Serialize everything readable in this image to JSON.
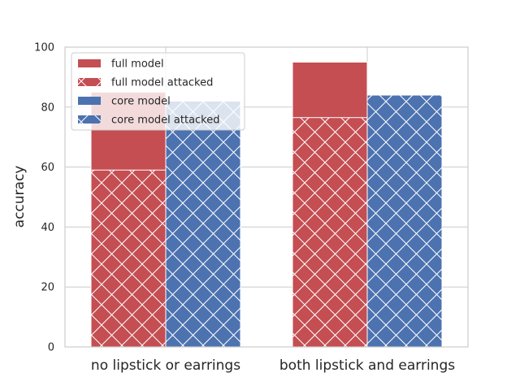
{
  "chart_data": {
    "type": "bar",
    "ylabel": "accuracy",
    "xlabel": "",
    "title": "",
    "ylim": [
      0,
      100
    ],
    "yticks": [
      0,
      20,
      40,
      60,
      80,
      100
    ],
    "grid": true,
    "legend_position": "top-left",
    "categories": [
      "no lipstick or earrings",
      "both lipstick and earrings"
    ],
    "series": [
      {
        "name": "full model",
        "values": [
          85,
          95
        ],
        "color": "#c44e52",
        "hatch": false
      },
      {
        "name": "full model attacked",
        "values": [
          59,
          76.5
        ],
        "color": "#c44e52",
        "hatch": true
      },
      {
        "name": "core model",
        "values": [
          82,
          84
        ],
        "color": "#4c72b0",
        "hatch": false
      },
      {
        "name": "core model attacked",
        "values": [
          82,
          84
        ],
        "color": "#4c72b0",
        "hatch": true
      }
    ]
  }
}
